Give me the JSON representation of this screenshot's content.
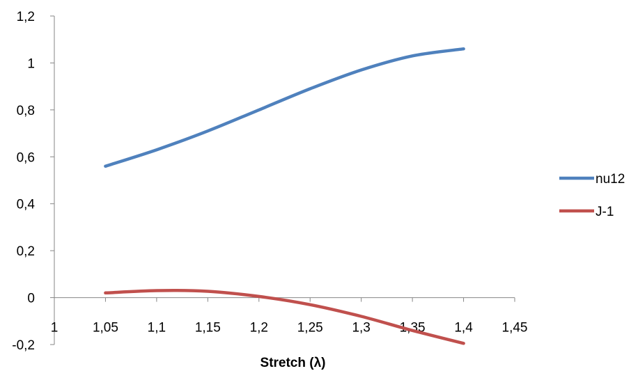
{
  "chart_data": {
    "type": "line",
    "title": "",
    "xlabel": "Stretch (λ)",
    "ylabel": "",
    "xlim": [
      1,
      1.45
    ],
    "ylim": [
      -0.2,
      1.2
    ],
    "x_ticks": [
      "1",
      "1,05",
      "1,1",
      "1,15",
      "1,2",
      "1,25",
      "1,3",
      "1,35",
      "1,4",
      "1,45"
    ],
    "y_ticks": [
      "-0,2",
      "0",
      "0,2",
      "0,4",
      "0,6",
      "0,8",
      "1",
      "1,2"
    ],
    "grid": false,
    "legend_position": "right",
    "x": [
      1.05,
      1.1,
      1.15,
      1.2,
      1.25,
      1.3,
      1.35,
      1.4
    ],
    "series": [
      {
        "name": "nu12",
        "color": "#4f81bd",
        "values": [
          0.56,
          0.63,
          0.71,
          0.8,
          0.89,
          0.97,
          1.03,
          1.06
        ]
      },
      {
        "name": "J-1",
        "color": "#c0504d",
        "values": [
          0.02,
          0.03,
          0.027,
          0.005,
          -0.03,
          -0.08,
          -0.14,
          -0.195
        ]
      }
    ]
  }
}
